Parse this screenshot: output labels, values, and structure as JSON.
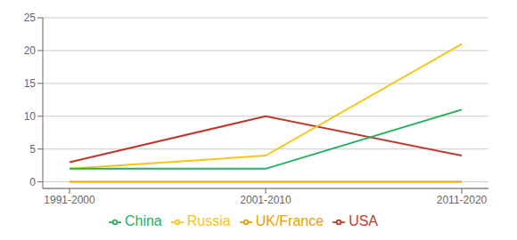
{
  "chart_data": {
    "type": "line",
    "categories": [
      "1991-2000",
      "2001-2010",
      "2011-2020"
    ],
    "series": [
      {
        "name": "USA",
        "color": "#c0392b",
        "values": [
          3,
          10,
          4
        ]
      },
      {
        "name": "Russia",
        "color": "#f5c518",
        "values": [
          2,
          4,
          21
        ]
      },
      {
        "name": "China",
        "color": "#27ae60",
        "values": [
          2,
          2,
          11
        ]
      },
      {
        "name": "UK/France",
        "color": "#e8a000",
        "values": [
          0,
          0,
          0
        ]
      }
    ],
    "ylim": [
      -1,
      25
    ],
    "yticks": [
      0,
      5,
      10,
      15,
      20,
      25
    ],
    "grid": true,
    "legend": "bottom"
  }
}
